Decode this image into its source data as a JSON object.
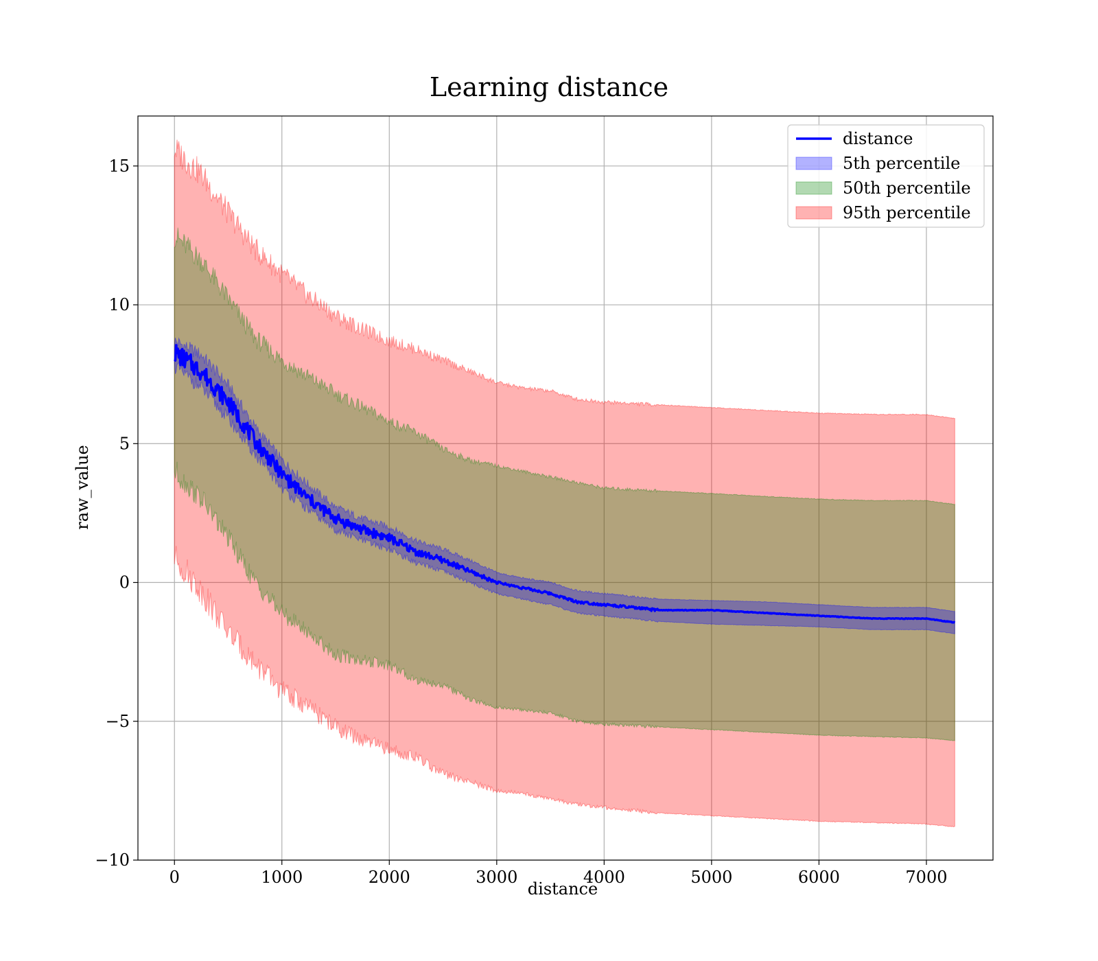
{
  "chart_data": {
    "type": "area",
    "title": "Learning distance",
    "xlabel": "distance",
    "ylabel": "raw_value",
    "xlim": [
      -340,
      7620
    ],
    "ylim": [
      -10,
      16.8
    ],
    "x_ticks": [
      0,
      1000,
      2000,
      3000,
      4000,
      5000,
      6000,
      7000
    ],
    "x_tick_labels": [
      "0",
      "1000",
      "2000",
      "3000",
      "4000",
      "5000",
      "6000",
      "7000"
    ],
    "y_ticks": [
      -10,
      -5,
      0,
      5,
      10,
      15
    ],
    "y_tick_labels": [
      "−10",
      "−5",
      "0",
      "5",
      "10",
      "15"
    ],
    "grid": true,
    "legend_position": "top-right",
    "colors": {
      "line": "#0000ff",
      "band_5th": "#0000ff",
      "band_50th": "#008000",
      "band_95th": "#ff0000"
    },
    "x": [
      0,
      250,
      500,
      750,
      1000,
      1250,
      1500,
      1750,
      2000,
      2250,
      2500,
      2750,
      3000,
      3250,
      3500,
      3750,
      4000,
      4500,
      5000,
      5500,
      6000,
      6500,
      7000,
      7270
    ],
    "series": [
      {
        "name": "distance",
        "kind": "line",
        "values": [
          8.3,
          7.6,
          6.5,
          5.1,
          3.9,
          3.0,
          2.3,
          1.9,
          1.6,
          1.1,
          0.8,
          0.4,
          0.0,
          -0.2,
          -0.4,
          -0.7,
          -0.8,
          -1.0,
          -1.0,
          -1.1,
          -1.2,
          -1.3,
          -1.3,
          -1.45
        ]
      },
      {
        "name": "5th percentile",
        "kind": "band",
        "lower": [
          7.8,
          7.0,
          5.9,
          4.6,
          3.4,
          2.6,
          1.9,
          1.5,
          1.2,
          0.7,
          0.4,
          0.0,
          -0.4,
          -0.6,
          -0.8,
          -1.1,
          -1.2,
          -1.4,
          -1.5,
          -1.55,
          -1.6,
          -1.7,
          -1.7,
          -1.85
        ],
        "upper": [
          8.7,
          8.2,
          7.1,
          5.6,
          4.4,
          3.5,
          2.7,
          2.3,
          2.0,
          1.5,
          1.2,
          0.8,
          0.35,
          0.15,
          0.0,
          -0.3,
          -0.4,
          -0.6,
          -0.65,
          -0.7,
          -0.8,
          -0.9,
          -0.9,
          -1.05
        ]
      },
      {
        "name": "50th percentile",
        "kind": "band",
        "lower": [
          4.0,
          3.0,
          1.6,
          0.0,
          -1.1,
          -1.8,
          -2.6,
          -2.8,
          -3.0,
          -3.5,
          -3.7,
          -4.2,
          -4.5,
          -4.6,
          -4.7,
          -5.0,
          -5.1,
          -5.2,
          -5.3,
          -5.4,
          -5.5,
          -5.55,
          -5.6,
          -5.7
        ],
        "upper": [
          12.5,
          11.6,
          10.2,
          8.8,
          8.0,
          7.4,
          6.8,
          6.3,
          5.8,
          5.4,
          4.8,
          4.4,
          4.2,
          4.0,
          3.8,
          3.6,
          3.4,
          3.3,
          3.2,
          3.1,
          3.0,
          2.95,
          2.95,
          2.8
        ]
      },
      {
        "name": "95th percentile",
        "kind": "band",
        "lower": [
          0.9,
          -0.3,
          -1.8,
          -2.9,
          -3.9,
          -4.5,
          -5.2,
          -5.7,
          -6.0,
          -6.3,
          -6.9,
          -7.2,
          -7.5,
          -7.6,
          -7.8,
          -8.0,
          -8.1,
          -8.3,
          -8.4,
          -8.5,
          -8.6,
          -8.65,
          -8.7,
          -8.8
        ],
        "upper": [
          15.6,
          14.7,
          13.3,
          12.0,
          11.1,
          10.3,
          9.6,
          9.1,
          8.7,
          8.4,
          8.0,
          7.6,
          7.2,
          7.0,
          6.9,
          6.6,
          6.5,
          6.4,
          6.3,
          6.2,
          6.1,
          6.05,
          6.05,
          5.9
        ]
      }
    ]
  }
}
